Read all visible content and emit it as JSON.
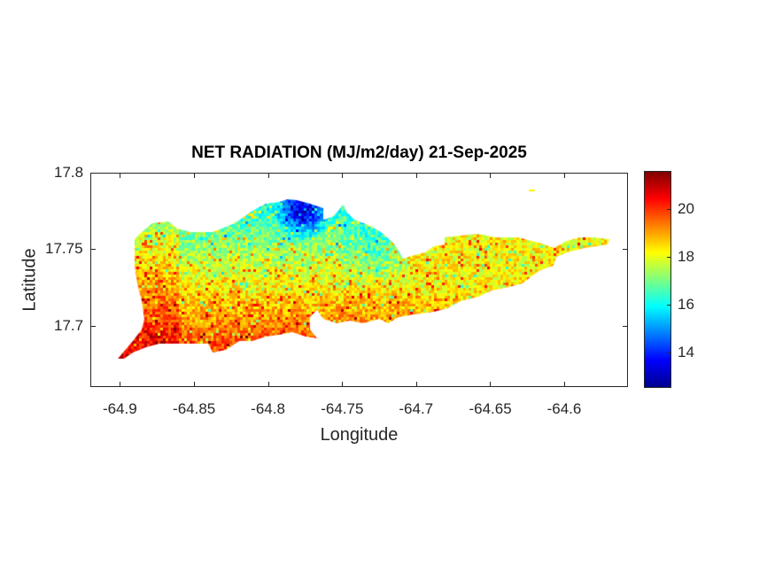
{
  "chart_data": {
    "type": "heatmap",
    "title": "NET RADIATION (MJ/m2/day) 21-Sep-2025",
    "xlabel": "Longitude",
    "ylabel": "Latitude",
    "xlim": [
      -64.92,
      -64.557
    ],
    "ylim": [
      17.66,
      17.8
    ],
    "xticks": [
      -64.9,
      -64.85,
      -64.8,
      -64.75,
      -64.7,
      -64.65,
      -64.6
    ],
    "xtick_labels": [
      "-64.9",
      "-64.85",
      "-64.8",
      "-64.75",
      "-64.7",
      "-64.65",
      "-64.6"
    ],
    "yticks": [
      17.7,
      17.75,
      17.8
    ],
    "ytick_labels": [
      "17.7",
      "17.75",
      "17.8"
    ],
    "colormap": "jet",
    "clim": [
      12.5,
      21.6
    ],
    "colorbar_ticks": [
      14,
      16,
      18,
      20
    ],
    "colorbar_tick_labels": [
      "14",
      "16",
      "18",
      "20"
    ],
    "grid": false,
    "value_pattern": "lowest (~13-14) at the north coast near -64.78, 17.775; about 16-17 over the north-central area; about 18-20.5 across the south coast and the east end"
  }
}
